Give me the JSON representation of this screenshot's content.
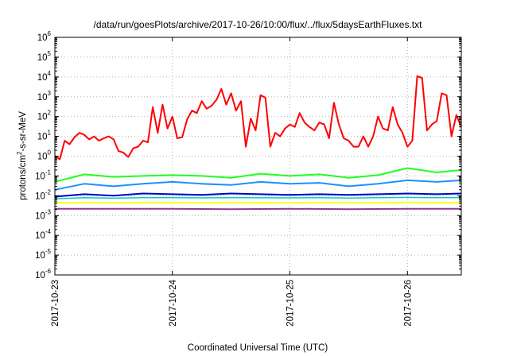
{
  "chart_data": {
    "type": "line",
    "title": "/data/run/goesPlots/archive/2017-10-26/10:00/flux/../flux/5daysEarthFluxes.txt",
    "xlabel": "Coordinated Universal Time (UTC)",
    "ylabel": "protons/cm2-s-sr-MeV",
    "ylabel_parts": {
      "before": "protons/cm",
      "sup": "2",
      "after": "-s-sr-MeV"
    },
    "y_scale": "log",
    "ylim": [
      1e-06,
      1000000.0
    ],
    "y_tick_exponents": [
      -6,
      -5,
      -4,
      -3,
      -2,
      -1,
      0,
      1,
      2,
      3,
      4,
      5,
      6
    ],
    "y_tick_base": "10",
    "xlim": [
      "2017-10-23T00:00",
      "2017-10-26T11:00"
    ],
    "x_ticks": [
      "2017-10-23",
      "2017-10-24",
      "2017-10-25",
      "2017-10-26"
    ],
    "grid": true,
    "legend": "none",
    "series": [
      {
        "color": "#ff0000",
        "stroke_width": 2,
        "points": [
          [
            "2017-10-23T00:00",
            1.0
          ],
          [
            "2017-10-23T01:00",
            0.7
          ],
          [
            "2017-10-23T02:00",
            6
          ],
          [
            "2017-10-23T03:00",
            4
          ],
          [
            "2017-10-23T04:00",
            9
          ],
          [
            "2017-10-23T05:00",
            15
          ],
          [
            "2017-10-23T06:00",
            12
          ],
          [
            "2017-10-23T07:00",
            7
          ],
          [
            "2017-10-23T08:00",
            10
          ],
          [
            "2017-10-23T09:00",
            6
          ],
          [
            "2017-10-23T10:00",
            8
          ],
          [
            "2017-10-23T11:00",
            10
          ],
          [
            "2017-10-23T12:00",
            7
          ],
          [
            "2017-10-23T13:00",
            1.8
          ],
          [
            "2017-10-23T14:00",
            1.5
          ],
          [
            "2017-10-23T15:00",
            0.9
          ],
          [
            "2017-10-23T16:00",
            2.5
          ],
          [
            "2017-10-23T17:00",
            3
          ],
          [
            "2017-10-23T18:00",
            6
          ],
          [
            "2017-10-23T19:00",
            5
          ],
          [
            "2017-10-23T20:00",
            300
          ],
          [
            "2017-10-23T21:00",
            15
          ],
          [
            "2017-10-23T22:00",
            400
          ],
          [
            "2017-10-23T23:00",
            25
          ],
          [
            "2017-10-24T00:00",
            100
          ],
          [
            "2017-10-24T01:00",
            8
          ],
          [
            "2017-10-24T02:00",
            9
          ],
          [
            "2017-10-24T03:00",
            70
          ],
          [
            "2017-10-24T04:00",
            200
          ],
          [
            "2017-10-24T05:00",
            150
          ],
          [
            "2017-10-24T06:00",
            600
          ],
          [
            "2017-10-24T07:00",
            250
          ],
          [
            "2017-10-24T08:00",
            350
          ],
          [
            "2017-10-24T09:00",
            700
          ],
          [
            "2017-10-24T10:00",
            2500
          ],
          [
            "2017-10-24T11:00",
            400
          ],
          [
            "2017-10-24T12:00",
            1500
          ],
          [
            "2017-10-24T13:00",
            200
          ],
          [
            "2017-10-24T14:00",
            600
          ],
          [
            "2017-10-24T15:00",
            3
          ],
          [
            "2017-10-24T16:00",
            80
          ],
          [
            "2017-10-24T17:00",
            20
          ],
          [
            "2017-10-24T18:00",
            1200
          ],
          [
            "2017-10-24T19:00",
            900
          ],
          [
            "2017-10-24T20:00",
            3
          ],
          [
            "2017-10-24T21:00",
            15
          ],
          [
            "2017-10-24T22:00",
            10
          ],
          [
            "2017-10-24T23:00",
            25
          ],
          [
            "2017-10-25T00:00",
            40
          ],
          [
            "2017-10-25T01:00",
            30
          ],
          [
            "2017-10-25T02:00",
            150
          ],
          [
            "2017-10-25T03:00",
            50
          ],
          [
            "2017-10-25T04:00",
            30
          ],
          [
            "2017-10-25T05:00",
            20
          ],
          [
            "2017-10-25T06:00",
            50
          ],
          [
            "2017-10-25T07:00",
            40
          ],
          [
            "2017-10-25T08:00",
            8
          ],
          [
            "2017-10-25T09:00",
            500
          ],
          [
            "2017-10-25T10:00",
            40
          ],
          [
            "2017-10-25T11:00",
            8
          ],
          [
            "2017-10-25T12:00",
            6
          ],
          [
            "2017-10-25T13:00",
            3
          ],
          [
            "2017-10-25T14:00",
            3
          ],
          [
            "2017-10-25T15:00",
            10
          ],
          [
            "2017-10-25T16:00",
            3
          ],
          [
            "2017-10-25T17:00",
            10
          ],
          [
            "2017-10-25T18:00",
            100
          ],
          [
            "2017-10-25T19:00",
            25
          ],
          [
            "2017-10-25T20:00",
            20
          ],
          [
            "2017-10-25T21:00",
            300
          ],
          [
            "2017-10-25T22:00",
            40
          ],
          [
            "2017-10-25T23:00",
            15
          ],
          [
            "2017-10-26T00:00",
            3
          ],
          [
            "2017-10-26T01:00",
            6
          ],
          [
            "2017-10-26T02:00",
            11000
          ],
          [
            "2017-10-26T03:00",
            9000
          ],
          [
            "2017-10-26T04:00",
            20
          ],
          [
            "2017-10-26T05:00",
            40
          ],
          [
            "2017-10-26T06:00",
            60
          ],
          [
            "2017-10-26T07:00",
            1500
          ],
          [
            "2017-10-26T08:00",
            1200
          ],
          [
            "2017-10-26T09:00",
            10
          ],
          [
            "2017-10-26T10:00",
            120
          ],
          [
            "2017-10-26T11:00",
            30
          ]
        ]
      },
      {
        "color": "#22ff22",
        "stroke_width": 2,
        "points": [
          [
            "2017-10-23T00:00",
            0.05
          ],
          [
            "2017-10-23T06:00",
            0.12
          ],
          [
            "2017-10-23T12:00",
            0.09
          ],
          [
            "2017-10-23T18:00",
            0.1
          ],
          [
            "2017-10-24T00:00",
            0.11
          ],
          [
            "2017-10-24T06:00",
            0.1
          ],
          [
            "2017-10-24T12:00",
            0.08
          ],
          [
            "2017-10-24T18:00",
            0.13
          ],
          [
            "2017-10-25T00:00",
            0.1
          ],
          [
            "2017-10-25T06:00",
            0.12
          ],
          [
            "2017-10-25T12:00",
            0.08
          ],
          [
            "2017-10-25T18:00",
            0.11
          ],
          [
            "2017-10-26T00:00",
            0.25
          ],
          [
            "2017-10-26T06:00",
            0.15
          ],
          [
            "2017-10-26T11:00",
            0.2
          ]
        ]
      },
      {
        "color": "#1e90ff",
        "stroke_width": 2,
        "points": [
          [
            "2017-10-23T00:00",
            0.02
          ],
          [
            "2017-10-23T06:00",
            0.04
          ],
          [
            "2017-10-23T12:00",
            0.03
          ],
          [
            "2017-10-23T18:00",
            0.04
          ],
          [
            "2017-10-24T00:00",
            0.05
          ],
          [
            "2017-10-24T06:00",
            0.04
          ],
          [
            "2017-10-24T12:00",
            0.035
          ],
          [
            "2017-10-24T18:00",
            0.05
          ],
          [
            "2017-10-25T00:00",
            0.04
          ],
          [
            "2017-10-25T06:00",
            0.045
          ],
          [
            "2017-10-25T12:00",
            0.03
          ],
          [
            "2017-10-25T18:00",
            0.04
          ],
          [
            "2017-10-26T00:00",
            0.06
          ],
          [
            "2017-10-26T06:00",
            0.05
          ],
          [
            "2017-10-26T11:00",
            0.06
          ]
        ]
      },
      {
        "color": "#0000cc",
        "stroke_width": 2,
        "points": [
          [
            "2017-10-23T00:00",
            0.009
          ],
          [
            "2017-10-23T06:00",
            0.012
          ],
          [
            "2017-10-23T12:00",
            0.01
          ],
          [
            "2017-10-23T18:00",
            0.013
          ],
          [
            "2017-10-24T00:00",
            0.012
          ],
          [
            "2017-10-24T06:00",
            0.011
          ],
          [
            "2017-10-24T12:00",
            0.013
          ],
          [
            "2017-10-24T18:00",
            0.012
          ],
          [
            "2017-10-25T00:00",
            0.011
          ],
          [
            "2017-10-25T06:00",
            0.012
          ],
          [
            "2017-10-25T12:00",
            0.011
          ],
          [
            "2017-10-25T18:00",
            0.012
          ],
          [
            "2017-10-26T00:00",
            0.013
          ],
          [
            "2017-10-26T06:00",
            0.012
          ],
          [
            "2017-10-26T11:00",
            0.013
          ]
        ]
      },
      {
        "color": "#00cccc",
        "stroke_width": 1.5,
        "points": [
          [
            "2017-10-23T00:00",
            0.007
          ],
          [
            "2017-10-23T06:00",
            0.008
          ],
          [
            "2017-10-23T12:00",
            0.0075
          ],
          [
            "2017-10-23T18:00",
            0.008
          ],
          [
            "2017-10-24T00:00",
            0.008
          ],
          [
            "2017-10-24T06:00",
            0.0078
          ],
          [
            "2017-10-24T12:00",
            0.008
          ],
          [
            "2017-10-24T18:00",
            0.0079
          ],
          [
            "2017-10-25T00:00",
            0.0078
          ],
          [
            "2017-10-25T06:00",
            0.008
          ],
          [
            "2017-10-25T12:00",
            0.0077
          ],
          [
            "2017-10-25T18:00",
            0.008
          ],
          [
            "2017-10-26T00:00",
            0.0082
          ],
          [
            "2017-10-26T06:00",
            0.008
          ],
          [
            "2017-10-26T11:00",
            0.0081
          ]
        ]
      },
      {
        "color": "#ffff00",
        "stroke_width": 2,
        "points": [
          [
            "2017-10-23T00:00",
            0.0045
          ],
          [
            "2017-10-23T12:00",
            0.0045
          ],
          [
            "2017-10-24T00:00",
            0.0045
          ],
          [
            "2017-10-24T12:00",
            0.0045
          ],
          [
            "2017-10-25T00:00",
            0.0045
          ],
          [
            "2017-10-25T12:00",
            0.0045
          ],
          [
            "2017-10-26T00:00",
            0.0045
          ],
          [
            "2017-10-26T11:00",
            0.0045
          ]
        ]
      },
      {
        "color": "#8b3a8b",
        "stroke_width": 2,
        "points": [
          [
            "2017-10-23T00:00",
            0.0022
          ],
          [
            "2017-10-23T12:00",
            0.0022
          ],
          [
            "2017-10-24T00:00",
            0.0022
          ],
          [
            "2017-10-24T12:00",
            0.0021
          ],
          [
            "2017-10-25T00:00",
            0.0022
          ],
          [
            "2017-10-25T12:00",
            0.0021
          ],
          [
            "2017-10-26T00:00",
            0.0022
          ],
          [
            "2017-10-26T11:00",
            0.0022
          ]
        ]
      }
    ]
  }
}
